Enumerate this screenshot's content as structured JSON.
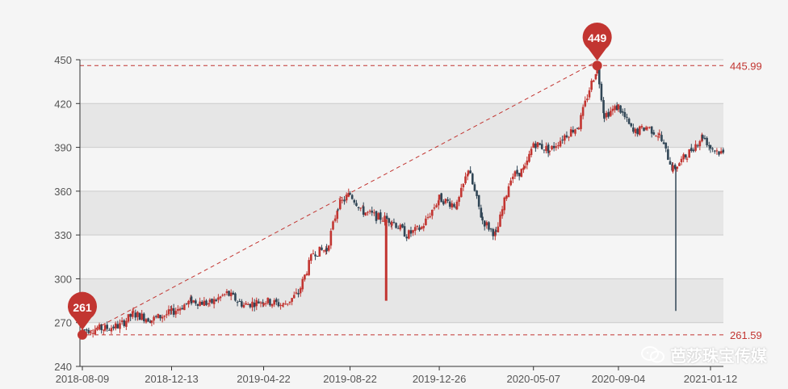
{
  "chart_data": {
    "type": "candlestick",
    "y_ticks": [
      240,
      270,
      300,
      330,
      360,
      390,
      420,
      450
    ],
    "ylim": [
      240,
      450
    ],
    "x_tick_labels": [
      "2018-08-09",
      "2018-12-13",
      "2019-04-22",
      "2019-08-22",
      "2019-12-26",
      "2020-05-07",
      "2020-09-04",
      "2021-01-12"
    ],
    "grid": true,
    "up_color": "#c23531",
    "down_color": "#314656",
    "mark_lines": [
      {
        "label": "445.99",
        "value": 445.99
      },
      {
        "label": "261.59",
        "value": 261.59
      }
    ],
    "mark_points": [
      {
        "label": "449",
        "x_date": "2020-08-05",
        "value": 449
      },
      {
        "label": "261",
        "x_date": "2018-08-09",
        "value": 261
      }
    ],
    "price_path": [
      [
        "2018-08-09",
        265
      ],
      [
        "2018-09-10",
        266
      ],
      [
        "2018-10-01",
        268
      ],
      [
        "2018-10-20",
        276
      ],
      [
        "2018-11-15",
        272
      ],
      [
        "2018-12-13",
        277
      ],
      [
        "2019-01-10",
        285
      ],
      [
        "2019-02-05",
        283
      ],
      [
        "2019-03-01",
        290
      ],
      [
        "2019-03-25",
        282
      ],
      [
        "2019-04-22",
        285
      ],
      [
        "2019-05-20",
        282
      ],
      [
        "2019-06-10",
        290
      ],
      [
        "2019-07-01",
        318
      ],
      [
        "2019-07-20",
        320
      ],
      [
        "2019-08-05",
        350
      ],
      [
        "2019-08-22",
        358
      ],
      [
        "2019-09-10",
        346
      ],
      [
        "2019-10-01",
        342
      ],
      [
        "2019-10-20",
        340
      ],
      [
        "2019-11-10",
        330
      ],
      [
        "2019-12-01",
        335
      ],
      [
        "2019-12-26",
        355
      ],
      [
        "2020-01-20",
        350
      ],
      [
        "2020-02-05",
        375
      ],
      [
        "2020-02-25",
        340
      ],
      [
        "2020-03-15",
        330
      ],
      [
        "2020-04-05",
        370
      ],
      [
        "2020-04-25",
        375
      ],
      [
        "2020-05-07",
        393
      ],
      [
        "2020-05-30",
        388
      ],
      [
        "2020-06-20",
        398
      ],
      [
        "2020-07-10",
        405
      ],
      [
        "2020-07-25",
        430
      ],
      [
        "2020-08-05",
        445
      ],
      [
        "2020-08-15",
        412
      ],
      [
        "2020-09-04",
        418
      ],
      [
        "2020-09-25",
        400
      ],
      [
        "2020-10-15",
        404
      ],
      [
        "2020-11-01",
        398
      ],
      [
        "2020-11-20",
        375
      ],
      [
        "2020-12-10",
        385
      ],
      [
        "2021-01-01",
        398
      ],
      [
        "2021-01-12",
        390
      ],
      [
        "2021-02-01",
        385
      ]
    ],
    "spikes": [
      {
        "date": "2019-10-12",
        "low": 285,
        "color": "up"
      },
      {
        "date": "2020-11-24",
        "low": 278,
        "color": "down"
      }
    ]
  },
  "watermark": {
    "icon": "wechat-icon",
    "text": "芭莎珠宝传媒"
  }
}
